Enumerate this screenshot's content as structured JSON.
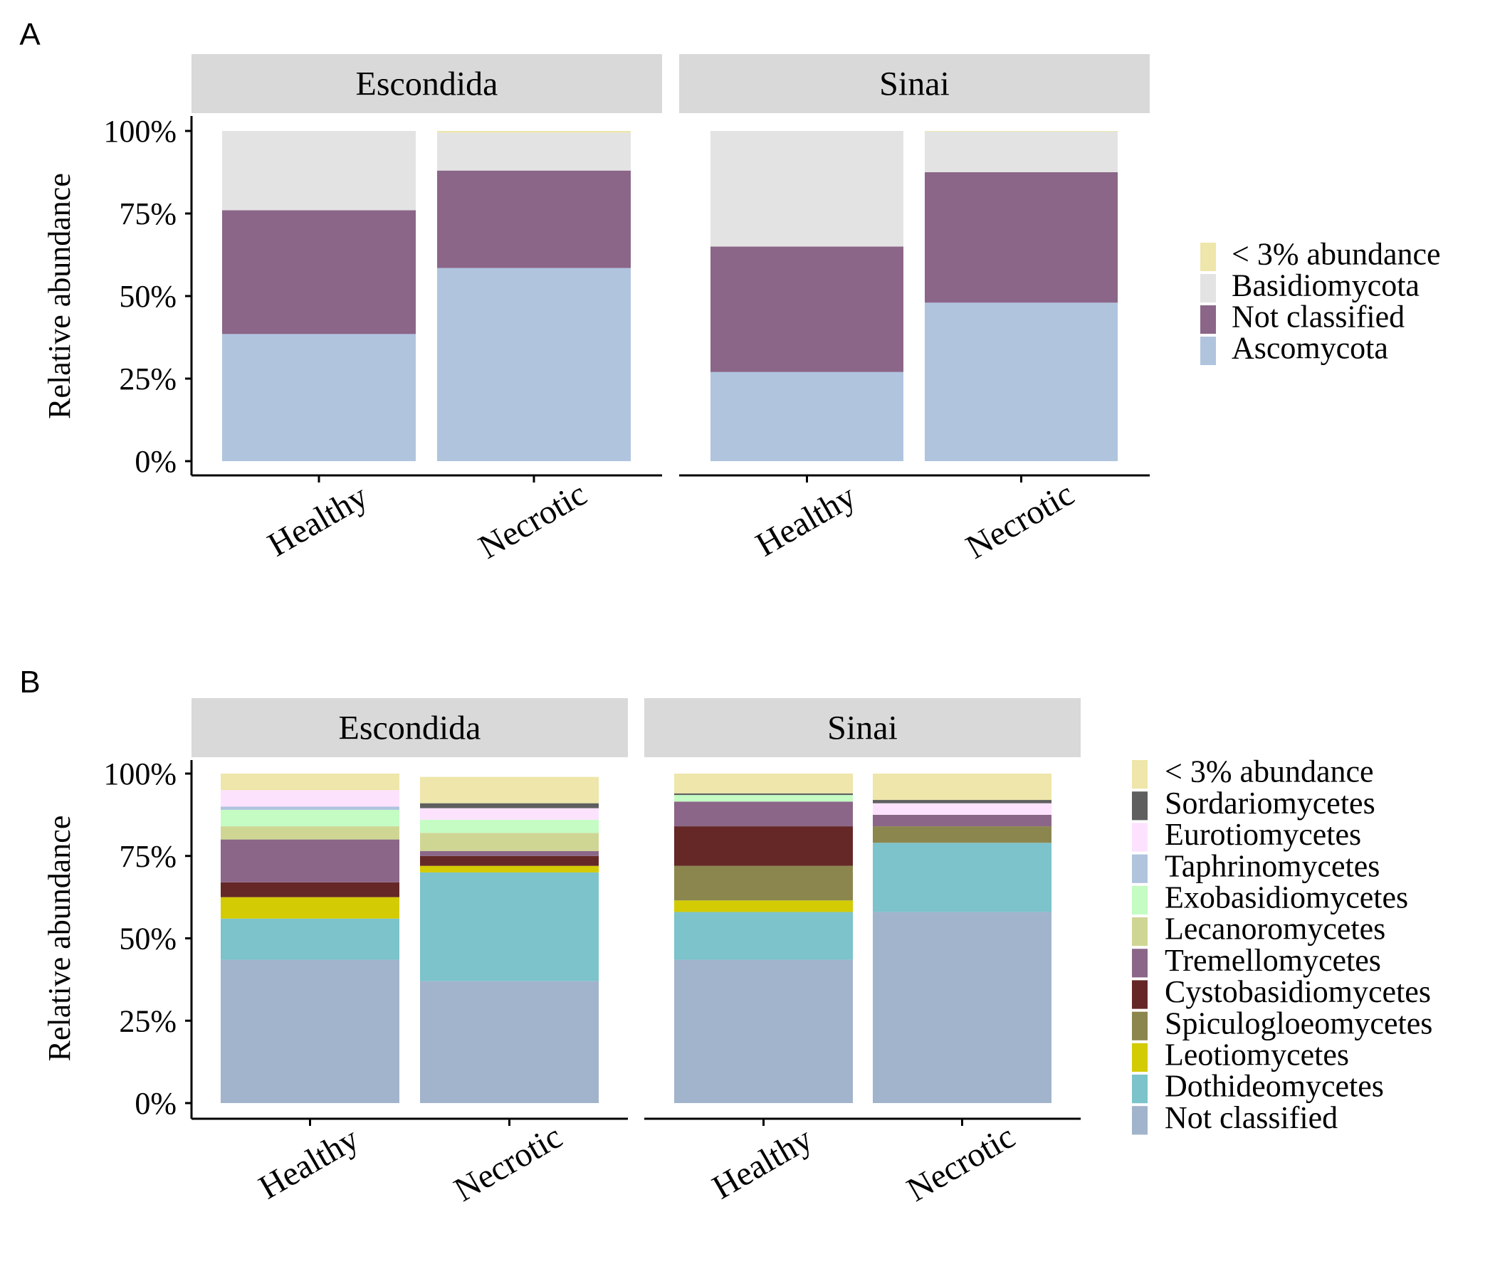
{
  "chart_data": [
    {
      "panel_label": "A",
      "type": "bar",
      "stacked": true,
      "ylabel": "Relative abundance",
      "ylim": [
        0,
        100
      ],
      "y_ticks": [
        "0%",
        "25%",
        "50%",
        "75%",
        "100%"
      ],
      "categories": [
        "Healthy",
        "Necrotic"
      ],
      "facets": [
        "Escondida",
        "Sinai"
      ],
      "legend_position": "right",
      "legend_order": [
        "< 3% abundance",
        "Basidiomycota",
        "Not classified",
        "Ascomycota"
      ],
      "series": [
        {
          "name": "Ascomycota",
          "color": "#b0c4de",
          "values": [
            [
              38.5,
              58.5
            ],
            [
              27,
              48
            ]
          ]
        },
        {
          "name": "Not classified",
          "color": "#8b6688",
          "values": [
            [
              37.5,
              29.5
            ],
            [
              38,
              39.5
            ]
          ]
        },
        {
          "name": "Basidiomycota",
          "color": "#e3e3e3",
          "values": [
            [
              24,
              11.5
            ],
            [
              35,
              12.3
            ]
          ]
        },
        {
          "name": "< 3% abundance",
          "color": "#eee6aa",
          "values": [
            [
              0,
              0.5
            ],
            [
              0,
              0.2
            ]
          ]
        }
      ]
    },
    {
      "panel_label": "B",
      "type": "bar",
      "stacked": true,
      "ylabel": "Relative abundance",
      "ylim": [
        0,
        100
      ],
      "y_ticks": [
        "0%",
        "25%",
        "50%",
        "75%",
        "100%"
      ],
      "categories": [
        "Healthy",
        "Necrotic"
      ],
      "facets": [
        "Escondida",
        "Sinai"
      ],
      "legend_position": "right",
      "legend_order": [
        "< 3% abundance",
        "Sordariomycetes",
        "Eurotiomycetes",
        "Taphrinomycetes",
        "Exobasidiomycetes",
        "Lecanoromycetes",
        "Tremellomycetes",
        "Cystobasidiomycetes",
        "Spiculogloeomycetes",
        "Leotiomycetes",
        "Dothideomycetes",
        "Not classified"
      ],
      "series": [
        {
          "name": "Not classified",
          "color": "#a2b4cc",
          "values": [
            [
              43.5,
              37
            ],
            [
              43.5,
              58
            ]
          ]
        },
        {
          "name": "Dothideomycetes",
          "color": "#7cc3cb",
          "values": [
            [
              12.5,
              33
            ],
            [
              14.5,
              21
            ]
          ]
        },
        {
          "name": "Leotiomycetes",
          "color": "#d3cb04",
          "values": [
            [
              6.5,
              2
            ],
            [
              3.5,
              0
            ]
          ]
        },
        {
          "name": "Spiculogloeomycetes",
          "color": "#8b864e",
          "values": [
            [
              0,
              0
            ],
            [
              10.5,
              5
            ]
          ]
        },
        {
          "name": "Cystobasidiomycetes",
          "color": "#652826",
          "values": [
            [
              4.5,
              3
            ],
            [
              12,
              0
            ]
          ]
        },
        {
          "name": "Tremellomycetes",
          "color": "#8b6688",
          "values": [
            [
              13,
              1.5
            ],
            [
              7.5,
              3.5
            ]
          ]
        },
        {
          "name": "Lecanoromycetes",
          "color": "#cfd694",
          "values": [
            [
              4,
              5.5
            ],
            [
              0,
              0
            ]
          ]
        },
        {
          "name": "Exobasidiomycetes",
          "color": "#c4fcc4",
          "values": [
            [
              5,
              4
            ],
            [
              2,
              0
            ]
          ]
        },
        {
          "name": "Taphrinomycetes",
          "color": "#b0c4de",
          "values": [
            [
              1,
              0
            ],
            [
              0,
              0
            ]
          ]
        },
        {
          "name": "Eurotiomycetes",
          "color": "#fde2fd",
          "values": [
            [
              5,
              3.5
            ],
            [
              0,
              3.5
            ]
          ]
        },
        {
          "name": "Sordariomycetes",
          "color": "#5f5f5f",
          "values": [
            [
              0,
              1.5
            ],
            [
              0.5,
              1
            ]
          ]
        },
        {
          "name": "< 3% abundance",
          "color": "#eee6aa",
          "values": [
            [
              5,
              8
            ],
            [
              6,
              8
            ]
          ]
        }
      ]
    }
  ]
}
